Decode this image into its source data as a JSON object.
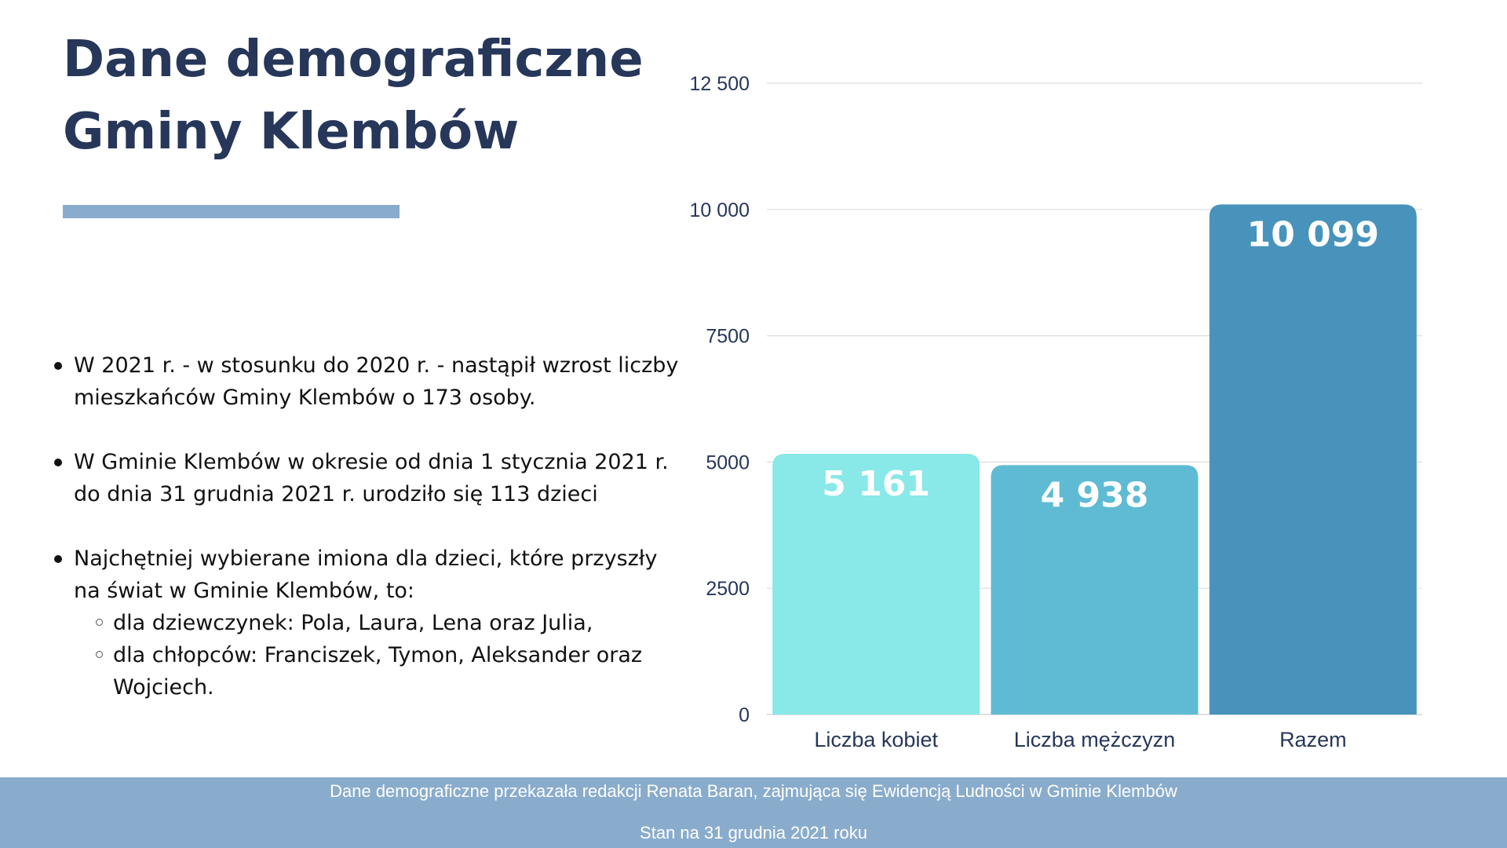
{
  "header": {
    "title_line1": "Dane demograficzne",
    "title_line2": "Gminy Klembów"
  },
  "bullets": [
    {
      "text": "W 2021 r. - w stosunku do 2020 r. - nastąpił wzrost liczby mieszkańców Gminy Klembów o 173 osoby."
    },
    {
      "text": "W Gminie Klembów  w okresie od dnia 1 stycznia 2021 r. do dnia 31 grudnia 2021 r. urodziło się 113 dzieci"
    },
    {
      "text": "Najchętniej wybierane imiona dla dzieci, które  przyszły na świat w Gminie Klembów, to:"
    }
  ],
  "sub_bullets": [
    {
      "text": "dla dziewczynek: Pola, Laura, Lena oraz Julia,"
    },
    {
      "text": "dla chłopców: Franciszek, Tymon, Aleksander oraz Wojciech."
    }
  ],
  "chart_data": {
    "type": "bar",
    "categories": [
      "Liczba kobiet",
      "Liczba mężczyzn",
      "Razem"
    ],
    "values": [
      5161,
      4938,
      10099
    ],
    "value_labels": [
      "5 161",
      "4 938",
      "10 099"
    ],
    "bar_colors": [
      "#89e8e8",
      "#5fbbd3",
      "#4793bb"
    ],
    "yticks": [
      0,
      2500,
      5000,
      7500,
      10000,
      12500
    ],
    "ytick_labels": [
      "0",
      "2500",
      "5000",
      "7500",
      "10 000",
      "12 500"
    ],
    "ylim": [
      0,
      12500
    ],
    "grid": true,
    "title": "",
    "xlabel": "",
    "ylabel": ""
  },
  "footer": {
    "line1": "Dane demograficzne przekazała redakcji Renata Baran, zajmująca się Ewidencją Ludności w Gminie Klembów",
    "line2": "Stan na 31 grudnia 2021 roku"
  },
  "colors": {
    "title": "#26375a",
    "accent_bar": "#8aaccc",
    "footer_bg": "#8aaccc",
    "axis_text": "#26375a",
    "gridline": "#dddddd"
  }
}
